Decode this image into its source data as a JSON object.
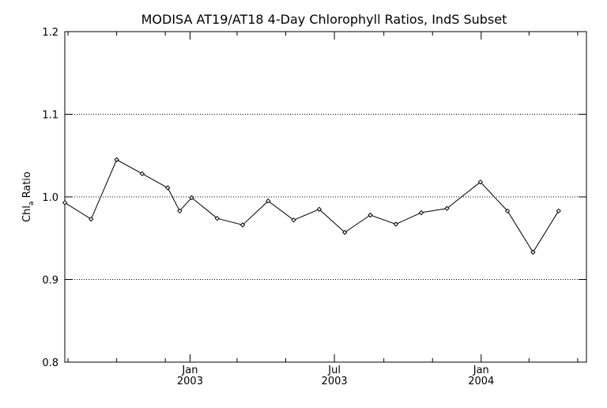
{
  "chart_data": {
    "type": "line",
    "title": "MODISA AT19/AT18 4-Day Chlorophyll Ratios, IndS Subset",
    "ylabel": {
      "prefix": "Chl",
      "subscript": "a",
      "suffix": " Ratio"
    },
    "xlabel": "",
    "ylim": [
      0.8,
      1.2
    ],
    "yticks": [
      {
        "value": 0.8,
        "label": "0.8"
      },
      {
        "value": 0.9,
        "label": "0.9"
      },
      {
        "value": 1.0,
        "label": "1.0"
      },
      {
        "value": 1.1,
        "label": "1.1"
      },
      {
        "value": 1.2,
        "label": "1.2"
      }
    ],
    "grid_y": [
      0.9,
      1.0,
      1.1
    ],
    "xlim": [
      "2002-07-28",
      "2004-05-12"
    ],
    "xticks_major": [
      {
        "date": "2003-01-01",
        "line1": "Jan",
        "line2": "2003"
      },
      {
        "date": "2003-07-01",
        "line1": "Jul",
        "line2": "2003"
      },
      {
        "date": "2004-01-01",
        "line1": "Jan",
        "line2": "2004"
      }
    ],
    "xticks_minor": [
      "2002-08-01",
      "2002-10-01",
      "2002-12-01",
      "2003-03-01",
      "2003-05-01",
      "2003-09-01",
      "2003-11-01",
      "2004-03-01",
      "2004-05-01"
    ],
    "series": [
      {
        "points": [
          {
            "x": "2002-07-28",
            "y": 0.993
          },
          {
            "x": "2002-08-30",
            "y": 0.973
          },
          {
            "x": "2002-10-01",
            "y": 1.045
          },
          {
            "x": "2002-11-02",
            "y": 1.028
          },
          {
            "x": "2002-12-04",
            "y": 1.011
          },
          {
            "x": "2002-12-19",
            "y": 0.983
          },
          {
            "x": "2003-01-03",
            "y": 0.999
          },
          {
            "x": "2003-02-04",
            "y": 0.974
          },
          {
            "x": "2003-03-08",
            "y": 0.966
          },
          {
            "x": "2003-04-09",
            "y": 0.995
          },
          {
            "x": "2003-05-11",
            "y": 0.972
          },
          {
            "x": "2003-06-12",
            "y": 0.985
          },
          {
            "x": "2003-07-14",
            "y": 0.957
          },
          {
            "x": "2003-08-15",
            "y": 0.978
          },
          {
            "x": "2003-09-16",
            "y": 0.967
          },
          {
            "x": "2003-10-18",
            "y": 0.981
          },
          {
            "x": "2003-11-19",
            "y": 0.986
          },
          {
            "x": "2003-12-31",
            "y": 1.018
          },
          {
            "x": "2004-02-03",
            "y": 0.983
          },
          {
            "x": "2004-03-06",
            "y": 0.933
          },
          {
            "x": "2004-04-07",
            "y": 0.983
          }
        ]
      }
    ]
  }
}
